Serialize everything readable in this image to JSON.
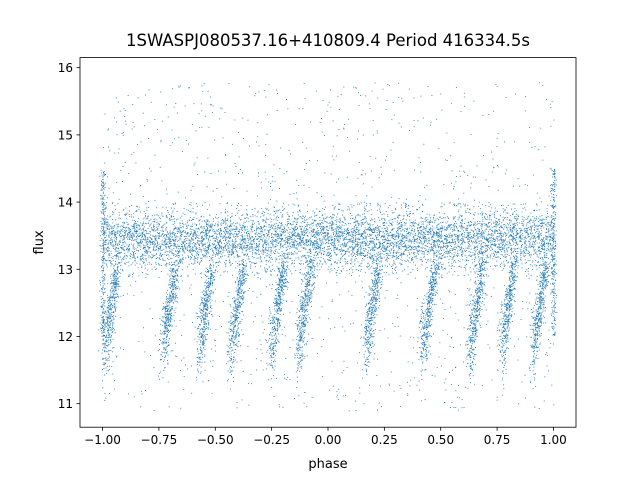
{
  "chart_data": {
    "type": "scatter",
    "title": "1SWASPJ080537.16+410809.4 Period 416334.5s",
    "xlabel": "phase",
    "ylabel": "flux",
    "xlim": [
      -1.1,
      1.1
    ],
    "ylim": [
      10.65,
      16.15
    ],
    "xticks": [
      -1.0,
      -0.75,
      -0.5,
      -0.25,
      0.0,
      0.25,
      0.5,
      0.75,
      1.0
    ],
    "xtick_labels": [
      "−1.00",
      "−0.75",
      "−0.50",
      "−0.25",
      "0.00",
      "0.25",
      "0.50",
      "0.75",
      "1.00"
    ],
    "yticks": [
      11,
      12,
      13,
      14,
      15,
      16
    ],
    "ytick_labels": [
      "11",
      "12",
      "13",
      "14",
      "15",
      "16"
    ],
    "grid": false,
    "color": "#1f77b4",
    "series": [
      {
        "x_range": [
          -1.0,
          1.0
        ],
        "baseline_flux": 13.45,
        "baseline_spread": [
          12.9,
          14.0
        ],
        "dip_phases": [
          -0.96,
          -0.7,
          -0.54,
          -0.4,
          -0.22,
          -0.1,
          0.2,
          0.45,
          0.66,
          0.8,
          0.94
        ],
        "dip_depth_flux": 12.0,
        "outlier_range": [
          10.9,
          15.8
        ]
      }
    ]
  }
}
